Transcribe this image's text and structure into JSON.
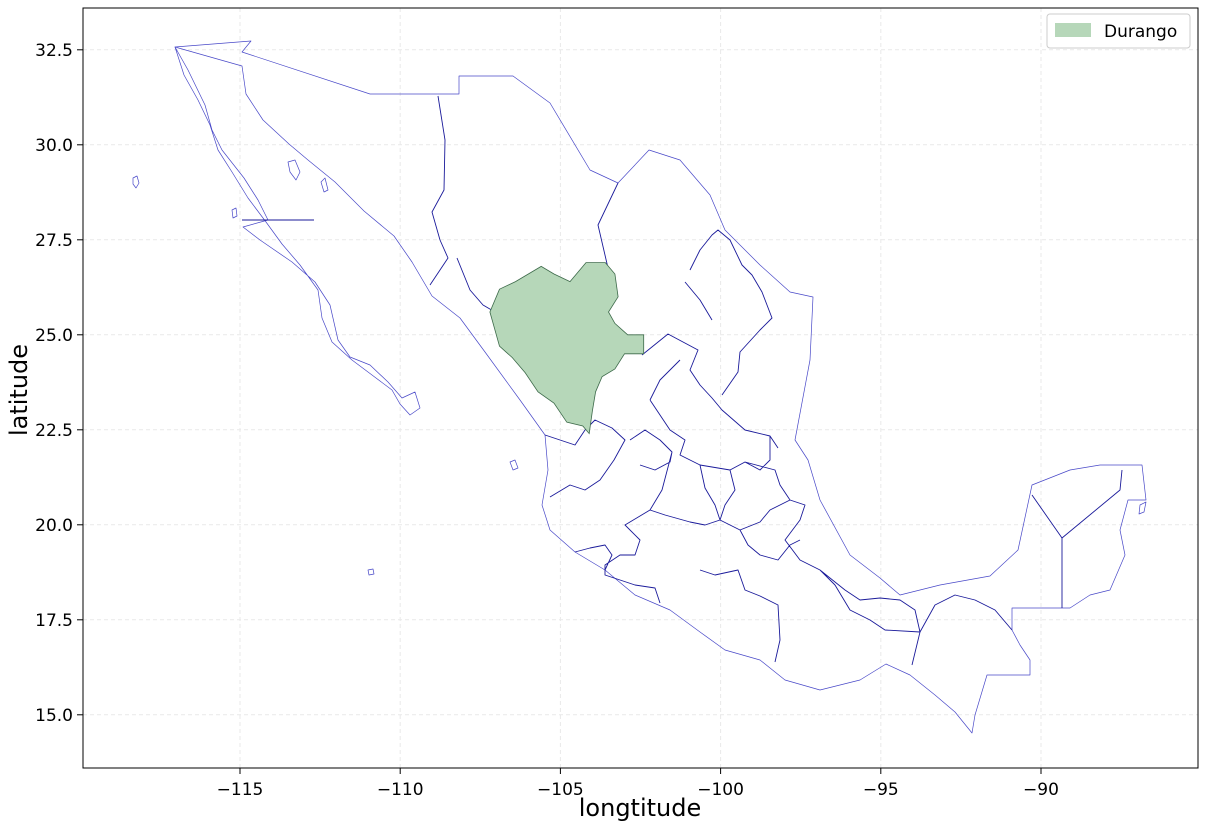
{
  "chart_data": {
    "type": "map",
    "xlabel": "longtitude",
    "ylabel": "latitude",
    "xlim": [
      -119.9,
      -85.1
    ],
    "ylim": [
      13.6,
      33.6
    ],
    "xticks": [
      -115,
      -110,
      -105,
      -100,
      -95,
      -90
    ],
    "yticks": [
      15.0,
      17.5,
      20.0,
      22.5,
      25.0,
      27.5,
      30.0,
      32.5
    ],
    "xtick_labels": [
      "−115",
      "−110",
      "−105",
      "−100",
      "−95",
      "−90"
    ],
    "ytick_labels": [
      "15.0",
      "17.5",
      "20.0",
      "22.5",
      "25.0",
      "27.5",
      "30.0",
      "32.5"
    ],
    "grid": true,
    "legend": {
      "placement": "top-right",
      "entries": [
        {
          "label": "Durango",
          "color": "#b6d7b9"
        }
      ]
    },
    "highlighted_state": {
      "name": "Durango",
      "fill": "#b6d7b9",
      "outline": [
        [
          -106.9,
          26.2
        ],
        [
          -106.4,
          26.4
        ],
        [
          -105.6,
          26.8
        ],
        [
          -105.2,
          26.6
        ],
        [
          -104.7,
          26.4
        ],
        [
          -104.2,
          26.9
        ],
        [
          -103.6,
          26.9
        ],
        [
          -103.3,
          26.6
        ],
        [
          -103.2,
          26.0
        ],
        [
          -103.5,
          25.6
        ],
        [
          -103.3,
          25.3
        ],
        [
          -102.9,
          25.0
        ],
        [
          -102.4,
          25.0
        ],
        [
          -102.4,
          24.5
        ],
        [
          -103.0,
          24.5
        ],
        [
          -103.3,
          24.1
        ],
        [
          -103.7,
          23.9
        ],
        [
          -103.9,
          23.5
        ],
        [
          -104.0,
          23.0
        ],
        [
          -104.1,
          22.4
        ],
        [
          -104.3,
          22.6
        ],
        [
          -104.8,
          22.7
        ],
        [
          -105.2,
          23.2
        ],
        [
          -105.7,
          23.5
        ],
        [
          -106.1,
          24.0
        ],
        [
          -106.5,
          24.4
        ],
        [
          -106.9,
          24.7
        ],
        [
          -107.2,
          25.6
        ]
      ]
    },
    "colors": {
      "coastline": "#4848c8",
      "boundary": "#1a1a9a",
      "frame": "#000000",
      "grid": "#e9e9e9"
    }
  }
}
